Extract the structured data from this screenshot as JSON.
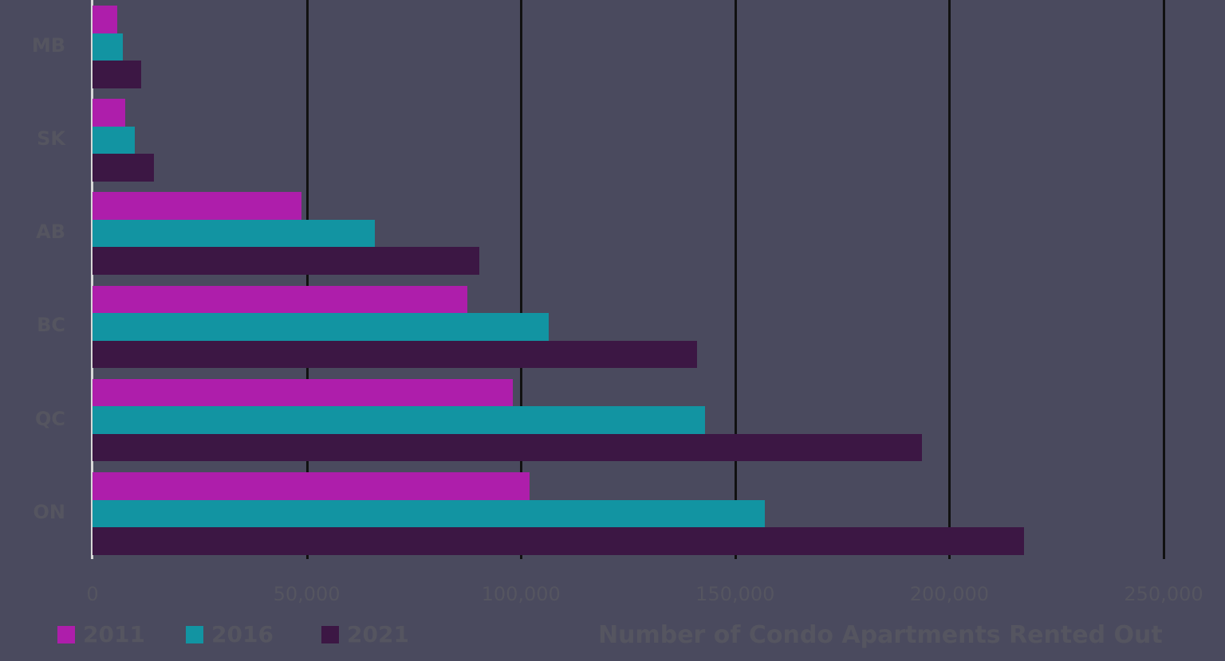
{
  "chart_data": {
    "type": "bar",
    "orientation": "horizontal",
    "title": "",
    "xlabel": "Number of Condo Apartments Rented Out",
    "ylabel": "",
    "categories": [
      "MB",
      "SK",
      "AB",
      "BC",
      "QC",
      "ON"
    ],
    "series": [
      {
        "name": "2011",
        "color": "#ae1eab",
        "values": [
          5800,
          7600,
          48800,
          87500,
          98100,
          102000
        ]
      },
      {
        "name": "2016",
        "color": "#1294a2",
        "values": [
          7100,
          9900,
          65900,
          106500,
          143000,
          156900
        ]
      },
      {
        "name": "2021",
        "color": "#3c1744",
        "values": [
          11400,
          14300,
          90300,
          141100,
          193600,
          217400
        ]
      }
    ],
    "xlim": [
      0,
      250000
    ],
    "x_ticks": [
      0,
      50000,
      100000,
      150000,
      200000,
      250000
    ],
    "x_tick_labels": [
      "0",
      "50,000",
      "100,000",
      "150,000",
      "200,000",
      "250,000"
    ],
    "grid": true,
    "legend_position": "bottom-left"
  },
  "legend": {
    "items": [
      {
        "label": "2011",
        "color": "#ae1eab"
      },
      {
        "label": "2016",
        "color": "#1294a2"
      },
      {
        "label": "2021",
        "color": "#3c1744"
      }
    ]
  },
  "axis": {
    "x_title": "Number of Condo Apartments Rented Out"
  }
}
